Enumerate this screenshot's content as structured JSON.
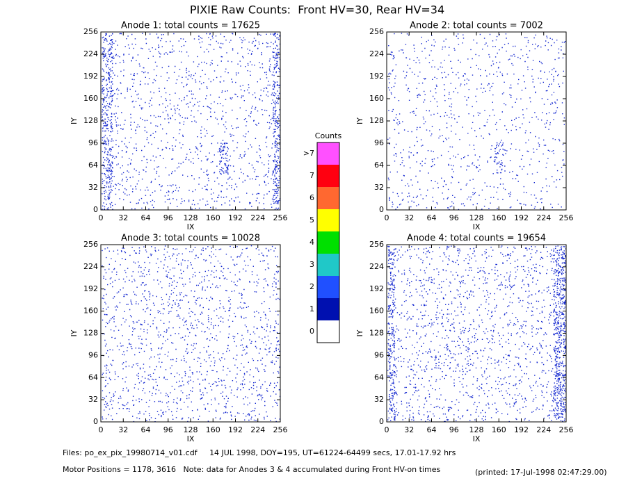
{
  "title": "PIXIE Raw Counts:  Front HV=30, Rear HV=34",
  "chart_data": [
    {
      "type": "heatmap",
      "title": "Anode 1: total counts = 17625",
      "x_label": "IX",
      "y_label": "IY",
      "xlim": [
        0,
        256
      ],
      "ylim": [
        0,
        256
      ],
      "xticks": [
        0,
        32,
        64,
        96,
        128,
        160,
        192,
        224,
        256
      ],
      "yticks": [
        0,
        32,
        64,
        96,
        128,
        160,
        192,
        224,
        256
      ]
    },
    {
      "type": "heatmap",
      "title": "Anode 2: total counts = 7002",
      "x_label": "IX",
      "y_label": "IY",
      "xlim": [
        0,
        256
      ],
      "ylim": [
        0,
        256
      ],
      "xticks": [
        0,
        32,
        64,
        96,
        128,
        160,
        192,
        224,
        256
      ],
      "yticks": [
        0,
        32,
        64,
        96,
        128,
        160,
        192,
        224,
        256
      ]
    },
    {
      "type": "heatmap",
      "title": "Anode 3: total counts = 10028",
      "x_label": "IX",
      "y_label": "IY",
      "xlim": [
        0,
        256
      ],
      "ylim": [
        0,
        256
      ],
      "xticks": [
        0,
        32,
        64,
        96,
        128,
        160,
        192,
        224,
        256
      ],
      "yticks": [
        0,
        32,
        64,
        96,
        128,
        160,
        192,
        224,
        256
      ]
    },
    {
      "type": "heatmap",
      "title": "Anode 4: total counts = 19654",
      "x_label": "IX",
      "y_label": "IY",
      "xlim": [
        0,
        256
      ],
      "ylim": [
        0,
        256
      ],
      "xticks": [
        0,
        32,
        64,
        96,
        128,
        160,
        192,
        224,
        256
      ],
      "yticks": [
        0,
        32,
        64,
        96,
        128,
        160,
        192,
        224,
        256
      ]
    }
  ],
  "colorbar": {
    "title": "Counts",
    "ticks": [
      0,
      1,
      2,
      3,
      4,
      5,
      6,
      7,
      {
        "value": 8,
        "label": ">7"
      }
    ],
    "colors": [
      "#ffffff",
      "#0010b0",
      "#2050ff",
      "#20c8c8",
      "#00e000",
      "#ffff00",
      "#ff6830",
      "#ff0010",
      "#ff50ff"
    ]
  },
  "footer": {
    "files": "Files: po_ex_pix_19980714_v01.cdf     14 JUL 1998, DOY=195, UT=61224-64499 secs, 17.01-17.92 hrs",
    "motor": "Motor Positions = 1178, 3616   Note: data for Anodes 3 & 4 accumulated during Front HV-on times",
    "printed": "(printed: 17-Jul-1998 02:47:29.00)"
  }
}
